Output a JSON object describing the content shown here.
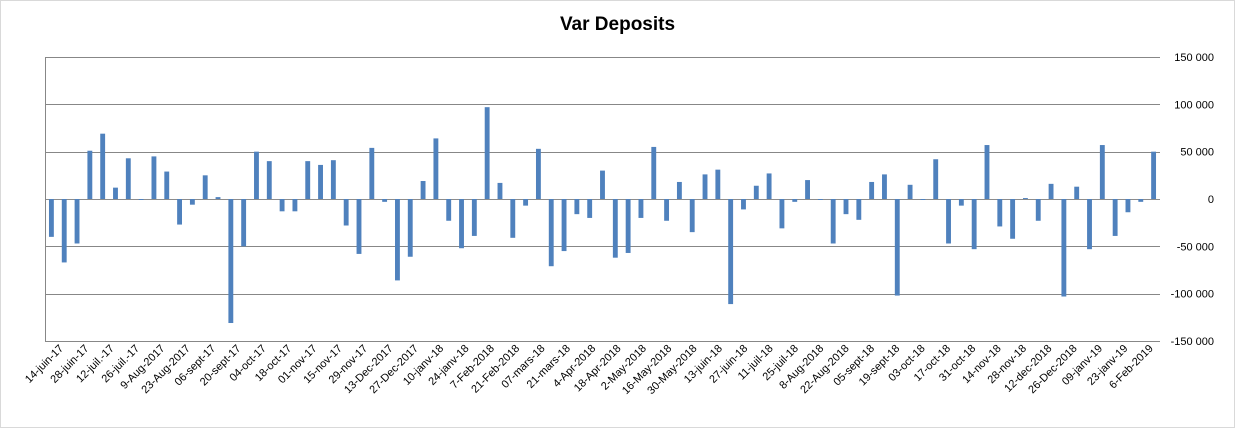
{
  "chart_data": {
    "type": "bar",
    "title": "Var Deposits",
    "xlabel": "",
    "ylabel": "",
    "ylim": [
      -150000,
      150000
    ],
    "y_ticks": [
      150000,
      100000,
      50000,
      0,
      -50000,
      -100000,
      -150000
    ],
    "y_tick_labels": [
      "150 000",
      "100 000",
      "50 000",
      "0",
      "-50 000",
      "-100 000",
      "-150 000"
    ],
    "y_axis_position": "right",
    "grid": true,
    "legend": "none",
    "bar_color": "#4f81bd",
    "x_tick_labels": [
      "14-juin-17",
      "28-juin-17",
      "12-juil.-17",
      "26-juil.-17",
      "9-Aug-2017",
      "23-Aug-2017",
      "06-sept-17",
      "20-sept-17",
      "04-oct-17",
      "18-oct-17",
      "01-nov-17",
      "15-nov-17",
      "29-nov-17",
      "13-Dec-2017",
      "27-Dec-2017",
      "10-janv-18",
      "24-janv-18",
      "7-Feb-2018",
      "21-Feb-2018",
      "07-mars-18",
      "21-mars-18",
      "4-Apr-2018",
      "18-Apr-2018",
      "2-May-2018",
      "16-May-2018",
      "30-May-2018",
      "13-juin-18",
      "27-juin-18",
      "11-juil-18",
      "25-juil-18",
      "8-Aug-2018",
      "22-Aug-2018",
      "05-sept-18",
      "19-sept-18",
      "03-oct-18",
      "17-oct-18",
      "31-oct-18",
      "14-nov-18",
      "28-nov-18",
      "12-dec-2018",
      "26-Dec-2018",
      "09-janv-19",
      "23-janv-19",
      "6-Feb-2019"
    ],
    "values": [
      -40000,
      -67000,
      -47000,
      51000,
      69000,
      12000,
      43000,
      -1000,
      45000,
      29000,
      -27000,
      -6000,
      25000,
      2000,
      -131000,
      -50000,
      50000,
      40000,
      -13000,
      -13000,
      40000,
      36000,
      41000,
      -28000,
      -58000,
      54000,
      -3000,
      -86000,
      -61000,
      19000,
      64000,
      -23000,
      -52000,
      -39000,
      97000,
      17000,
      -41000,
      -7000,
      53000,
      -71000,
      -55000,
      -16000,
      -20000,
      30000,
      -62000,
      -57000,
      -20000,
      55000,
      -23000,
      18000,
      -35000,
      26000,
      31000,
      -111000,
      -11000,
      14000,
      27000,
      -31000,
      -3000,
      20000,
      -1000,
      -47000,
      -16000,
      -22000,
      18000,
      26000,
      -102000,
      15000,
      -1000,
      42000,
      -47000,
      -7000,
      -53000,
      57000,
      -29000,
      -42000,
      1000,
      -23000,
      16000,
      -103000,
      13000,
      -53000,
      57000,
      -39000,
      -14000,
      -3000,
      50000
    ]
  }
}
